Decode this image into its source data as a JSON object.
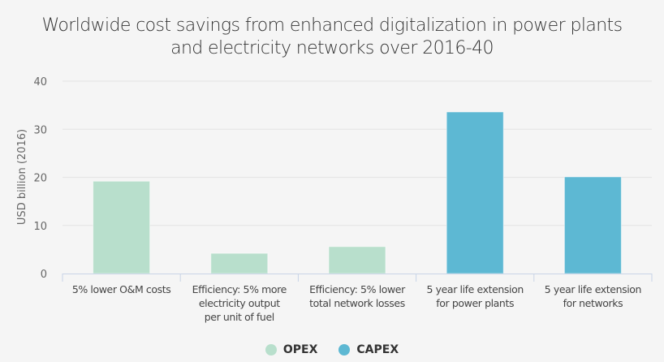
{
  "chart_data": {
    "type": "bar",
    "title": "Worldwide cost savings from enhanced digitalization in power plants and electricity networks over 2016-40",
    "title_lines": [
      "Worldwide cost savings from enhanced digitalization in power plants",
      "and electricity networks over 2016-40"
    ],
    "xlabel": "",
    "ylabel": "USD billion (2016)",
    "ylim": [
      0,
      40
    ],
    "yticks": [
      0,
      10,
      20,
      30,
      40
    ],
    "grid": true,
    "legend_position": "bottom-center",
    "categories": [
      "5% lower O&M costs",
      "Efficiency: 5% more electricity output per unit of fuel",
      "Efficiency: 5% lower total network losses",
      "5 year life extension for power plants",
      "5 year life extension for networks"
    ],
    "category_lines": [
      [
        "5% lower O&M costs"
      ],
      [
        "Efficiency: 5% more",
        "electricity output",
        "per unit of fuel"
      ],
      [
        "Efficiency: 5% lower",
        "total network losses"
      ],
      [
        "5 year life extension",
        "for power plants"
      ],
      [
        "5 year life extension",
        "for networks"
      ]
    ],
    "series": [
      {
        "name": "OPEX",
        "color": "#b8dfcc",
        "values": [
          19.2,
          4.2,
          5.6,
          null,
          null
        ]
      },
      {
        "name": "CAPEX",
        "color": "#5db8d3",
        "values": [
          null,
          null,
          null,
          33.6,
          20.1
        ]
      }
    ]
  },
  "legend": [
    {
      "label": "OPEX",
      "color": "#b8dfcc"
    },
    {
      "label": "CAPEX",
      "color": "#5db8d3"
    }
  ]
}
